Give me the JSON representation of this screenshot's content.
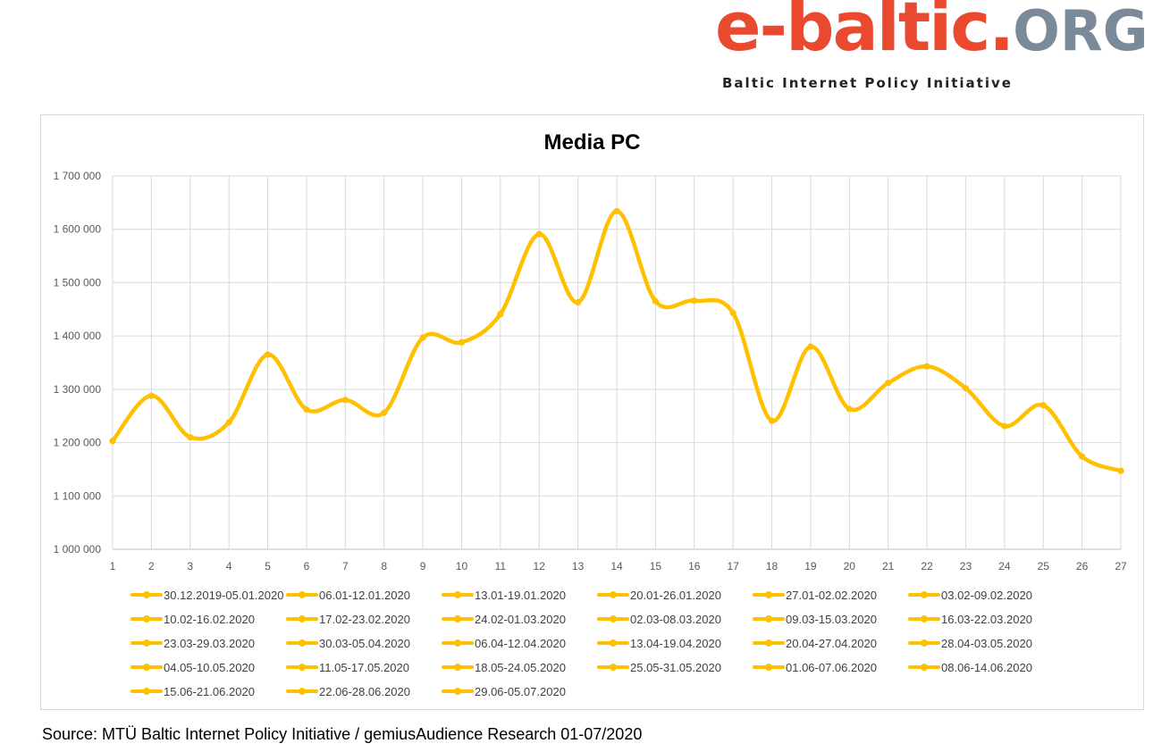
{
  "logo": {
    "part1": "e-baltic.",
    "part2": "ORG",
    "tagline": "Baltic Internet Policy Initiative"
  },
  "source": "Source: MTÜ Baltic Internet Policy Initiative / gemiusAudience Research 01-07/2020",
  "chart_data": {
    "type": "line",
    "title": "Media PC",
    "xlabel": "",
    "ylabel": "",
    "ylim": [
      1000000,
      1700000
    ],
    "ytick_step": 100000,
    "ytick_labels": [
      "1 000 000",
      "1 100 000",
      "1 200 000",
      "1 300 000",
      "1 400 000",
      "1 500 000",
      "1 600 000",
      "1 700 000"
    ],
    "grid": true,
    "smooth": true,
    "color": "#ffc000",
    "legend_position": "bottom",
    "x": [
      1,
      2,
      3,
      4,
      5,
      6,
      7,
      8,
      9,
      10,
      11,
      12,
      13,
      14,
      15,
      16,
      17,
      18,
      19,
      20,
      21,
      22,
      23,
      24,
      25,
      26,
      27
    ],
    "values": [
      1203000,
      1288000,
      1210000,
      1238000,
      1365000,
      1262000,
      1280000,
      1256000,
      1397000,
      1388000,
      1441000,
      1591000,
      1463000,
      1634000,
      1465000,
      1466000,
      1443000,
      1241000,
      1380000,
      1263000,
      1312000,
      1343000,
      1302000,
      1231000,
      1270000,
      1174000,
      1147000
    ],
    "legend": [
      "30.12.2019-05.01.2020",
      "06.01-12.01.2020",
      "13.01-19.01.2020",
      "20.01-26.01.2020",
      "27.01-02.02.2020",
      "03.02-09.02.2020",
      "10.02-16.02.2020",
      "17.02-23.02.2020",
      "24.02-01.03.2020",
      "02.03-08.03.2020",
      "09.03-15.03.2020",
      "16.03-22.03.2020",
      "23.03-29.03.2020",
      "30.03-05.04.2020",
      "06.04-12.04.2020",
      "13.04-19.04.2020",
      "20.04-27.04.2020",
      "28.04-03.05.2020",
      "04.05-10.05.2020",
      "11.05-17.05.2020",
      "18.05-24.05.2020",
      "25.05-31.05.2020",
      "01.06-07.06.2020",
      "08.06-14.06.2020",
      "15.06-21.06.2020",
      "22.06-28.06.2020",
      "29.06-05.07.2020"
    ]
  }
}
